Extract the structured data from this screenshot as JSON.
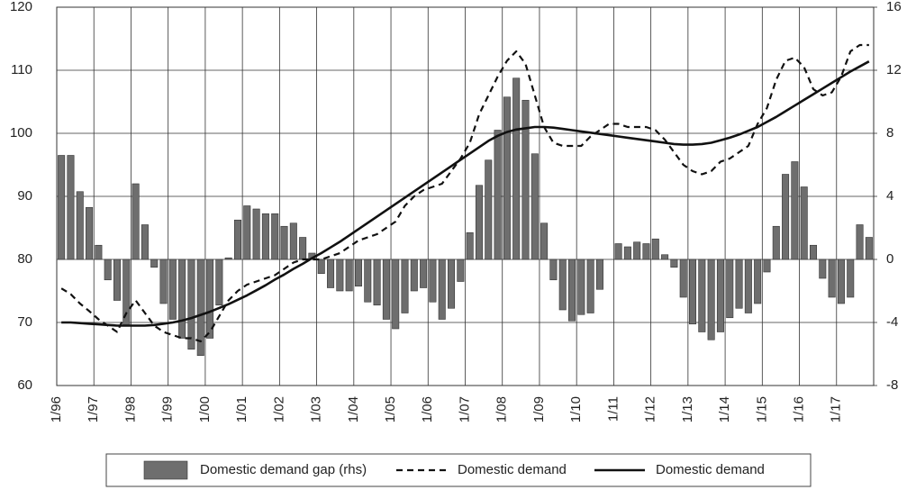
{
  "chart_data": {
    "type": "combo",
    "categories": [
      "1/96",
      null,
      null,
      null,
      "1/97",
      null,
      null,
      null,
      "1/98",
      null,
      null,
      null,
      "1/99",
      null,
      null,
      null,
      "1/00",
      null,
      null,
      null,
      "1/01",
      null,
      null,
      null,
      "1/02",
      null,
      null,
      null,
      "1/03",
      null,
      null,
      null,
      "1/04",
      null,
      null,
      null,
      "1/05",
      null,
      null,
      null,
      "1/06",
      null,
      null,
      null,
      "1/07",
      null,
      null,
      null,
      "1/08",
      null,
      null,
      null,
      "1/09",
      null,
      null,
      null,
      "1/10",
      null,
      null,
      null,
      "1/11",
      null,
      null,
      null,
      "1/12",
      null,
      null,
      null,
      "1/13",
      null,
      null,
      null,
      "1/14",
      null,
      null,
      null,
      "1/15",
      null,
      null,
      null,
      "1/16",
      null,
      null,
      null,
      "1/17",
      null,
      null,
      null
    ],
    "series": [
      {
        "name": "Domestic demand gap (rhs)",
        "type": "bar",
        "axis": "y2",
        "color": "#6e6e6e",
        "values": [
          6.6,
          6.6,
          4.3,
          3.3,
          0.9,
          -1.3,
          -2.6,
          -4.2,
          4.8,
          2.2,
          -0.5,
          -2.8,
          -3.8,
          -5.0,
          -5.7,
          -6.1,
          -5.0,
          -2.9,
          0.1,
          2.5,
          3.4,
          3.2,
          2.9,
          2.9,
          2.1,
          2.3,
          1.4,
          0.4,
          -0.9,
          -1.8,
          -2.0,
          -2.0,
          -1.7,
          -2.7,
          -2.9,
          -3.8,
          -4.4,
          -3.4,
          -2.0,
          -1.8,
          -2.7,
          -3.8,
          -3.1,
          -1.4,
          1.7,
          4.7,
          6.3,
          8.2,
          10.3,
          11.5,
          10.1,
          6.7,
          2.3,
          -1.3,
          -3.2,
          -3.9,
          -3.5,
          -3.4,
          -1.9,
          0.0,
          1.0,
          0.8,
          1.1,
          1.0,
          1.3,
          0.3,
          -0.5,
          -2.4,
          -4.1,
          -4.6,
          -5.1,
          -4.6,
          -3.7,
          -3.1,
          -3.4,
          -2.8,
          -0.8,
          2.1,
          5.4,
          6.2,
          4.6,
          0.9,
          -1.2,
          -2.4,
          -2.8,
          -2.4,
          2.2,
          1.4
        ]
      },
      {
        "name": "Domestic demand",
        "type": "line",
        "dashed": true,
        "color": "#111111",
        "values": [
          75.4,
          74.5,
          73.0,
          71.8,
          70.5,
          69.5,
          68.5,
          71.5,
          73.5,
          71.5,
          69.5,
          68.5,
          68.0,
          67.5,
          67.5,
          67.0,
          68.5,
          71.0,
          73.5,
          75.0,
          76.0,
          76.5,
          77.0,
          77.5,
          78.5,
          79.5,
          80.0,
          80.0,
          80.0,
          80.5,
          81.0,
          82.0,
          83.0,
          83.5,
          84.0,
          85.0,
          86.0,
          88.5,
          90.0,
          91.0,
          91.5,
          92.0,
          94.0,
          96.0,
          98.5,
          103.0,
          106.0,
          109.0,
          111.5,
          113.0,
          111.0,
          106.0,
          101.0,
          98.5,
          98.0,
          98.0,
          98.0,
          99.5,
          100.5,
          101.5,
          101.5,
          101.0,
          101.0,
          101.0,
          100.5,
          99.0,
          97.0,
          95.0,
          94.0,
          93.5,
          94.0,
          95.5,
          96.0,
          97.0,
          98.0,
          101.5,
          104.0,
          108.5,
          111.5,
          112.0,
          110.5,
          107.0,
          106.0,
          106.5,
          109.0,
          113.0,
          114.0,
          114.0
        ]
      },
      {
        "name": "Domestic demand",
        "type": "line",
        "dashed": false,
        "color": "#111111",
        "values": [
          70.0,
          70.0,
          69.9,
          69.8,
          69.7,
          69.6,
          69.5,
          69.5,
          69.5,
          69.5,
          69.6,
          69.8,
          70.0,
          70.3,
          70.7,
          71.2,
          71.7,
          72.3,
          72.9,
          73.6,
          74.3,
          75.1,
          75.9,
          76.8,
          77.6,
          78.5,
          79.3,
          80.2,
          81.0,
          81.9,
          82.8,
          83.8,
          84.8,
          85.8,
          86.8,
          87.8,
          88.8,
          89.8,
          90.8,
          91.8,
          92.8,
          93.8,
          94.8,
          95.8,
          96.8,
          97.8,
          98.8,
          99.6,
          100.2,
          100.6,
          100.8,
          101.0,
          101.0,
          100.9,
          100.7,
          100.5,
          100.3,
          100.1,
          99.9,
          99.7,
          99.5,
          99.3,
          99.1,
          98.9,
          98.7,
          98.5,
          98.3,
          98.2,
          98.2,
          98.3,
          98.5,
          98.9,
          99.3,
          99.8,
          100.4,
          101.0,
          101.8,
          102.6,
          103.5,
          104.4,
          105.3,
          106.2,
          107.1,
          108.0,
          108.9,
          109.8,
          110.6,
          111.4
        ]
      }
    ],
    "ylim": [
      60,
      120
    ],
    "yticks": [
      60,
      70,
      80,
      90,
      100,
      110,
      120
    ],
    "y2lim": [
      -8,
      16
    ],
    "y2ticks": [
      -8,
      -4,
      0,
      4,
      8,
      12,
      16
    ],
    "grid": true,
    "legend": "bottom"
  }
}
